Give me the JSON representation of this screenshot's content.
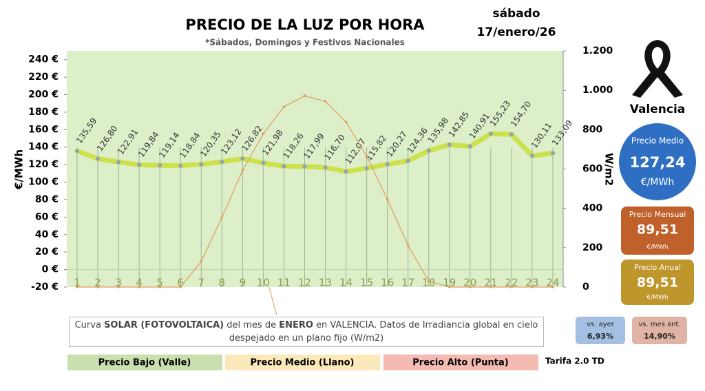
{
  "chart_data": {
    "type": "line",
    "title": "PRECIO DE LA LUZ POR HORA",
    "subtitle": "*Sábados, Domingos y Festivos Nacionales",
    "date_lines": [
      "sábado",
      "17/enero/26"
    ],
    "ylabel": "€/MWh",
    "y2label": "W/m2",
    "categories": [
      "1",
      "2",
      "3",
      "4",
      "5",
      "6",
      "7",
      "8",
      "9",
      "10",
      "11",
      "12",
      "13",
      "14",
      "15",
      "16",
      "17",
      "18",
      "19",
      "20",
      "21",
      "22",
      "23",
      "24"
    ],
    "series": [
      {
        "name": "Precio",
        "color": "#cde14c",
        "marker_color": "#8ea3b8",
        "values": [
          135.59,
          126.8,
          122.91,
          119.84,
          119.14,
          118.84,
          120.35,
          123.12,
          126.82,
          121.98,
          118.26,
          117.99,
          116.7,
          112.07,
          115.82,
          120.27,
          124.36,
          135.98,
          142.85,
          140.91,
          155.23,
          154.7,
          130.11,
          133.09
        ],
        "value_labels": [
          "135,59",
          "126,80",
          "122,91",
          "119,84",
          "119,14",
          "118,84",
          "120,35",
          "123,12",
          "126,82",
          "121,98",
          "118,26",
          "117,99",
          "116,70",
          "112,07",
          "115,82",
          "120,27",
          "124,36",
          "135,98",
          "142,85",
          "140,91",
          "155,23",
          "154,70",
          "130,11",
          "133,09"
        ]
      },
      {
        "name": "Curva solar",
        "color": "#e39a5c",
        "axis": "y2",
        "values": [
          0,
          0,
          0,
          0,
          0,
          0,
          130,
          354,
          593,
          779,
          916,
          972,
          944,
          839,
          665,
          446,
          211,
          30,
          0,
          0,
          0,
          0,
          0,
          0
        ]
      }
    ],
    "ylim": [
      -20,
      250
    ],
    "yticks": [
      {
        "value": -20,
        "label": "-20 €"
      },
      {
        "value": 0,
        "label": "0 €"
      },
      {
        "value": 20,
        "label": "20 €"
      },
      {
        "value": 40,
        "label": "40 €"
      },
      {
        "value": 60,
        "label": "60 €"
      },
      {
        "value": 80,
        "label": "80 €"
      },
      {
        "value": 100,
        "label": "100 €"
      },
      {
        "value": 120,
        "label": "120 €"
      },
      {
        "value": 140,
        "label": "140 €"
      },
      {
        "value": 160,
        "label": "160 €"
      },
      {
        "value": 180,
        "label": "180 €"
      },
      {
        "value": 200,
        "label": "200 €"
      },
      {
        "value": 220,
        "label": "220 €"
      },
      {
        "value": 240,
        "label": "240 €"
      }
    ],
    "y2lim": [
      0,
      1200
    ],
    "y2ticks": [
      0,
      200,
      400,
      600,
      800,
      {
        "value": 1000,
        "label": "1.000"
      },
      {
        "value": 1200,
        "label": "1.200"
      }
    ],
    "plot_background": "#dcefc8",
    "annotation": [
      "Curva ",
      "SOLAR (FOTOVOLTAICA)",
      " del mes de ",
      "ENERO",
      " en VALENCIA. Datos de Irradiancia global en cielo despejado en un plano fijo (W/m2)"
    ],
    "legend": [
      {
        "name": "Precio Bajo (Valle)",
        "color": "#c9e0ae"
      },
      {
        "name": "Precio Medio (Llano)",
        "color": "#fbe9b9"
      },
      {
        "name": "Precio Alto (Punta)",
        "color": "#f5bab2"
      }
    ],
    "tariff": "Tarifa 2.0 TD"
  },
  "panels": {
    "city": "Valencia",
    "average": {
      "title": "Precio Medio",
      "value": "127,24",
      "unit": "€/MWh",
      "color": "#2f6fc3"
    },
    "monthly": {
      "title": "Precio Mensual",
      "value": "89,51",
      "unit": "€/MWh",
      "color": "#c0602b"
    },
    "yearly": {
      "title": "Precio Anual",
      "value": "89,51",
      "unit": "€/MWh",
      "color": "#bf962c"
    },
    "vs_yesterday": {
      "title": "vs. ayer",
      "value": "6,93%",
      "color": "#a3bfe2"
    },
    "vs_last_month": {
      "title": "vs. mes ant.",
      "value": "14,90%",
      "color": "#dfb4a4"
    }
  }
}
